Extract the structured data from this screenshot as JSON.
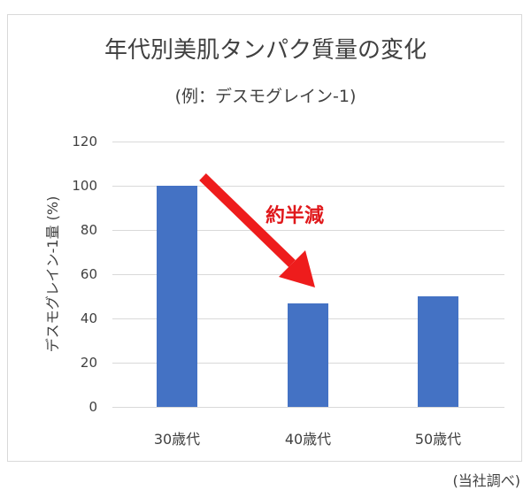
{
  "chart_data": {
    "type": "bar",
    "title": "年代別美肌タンパク質量の変化",
    "subtitle": "(例：デスモグレイン-1)",
    "xlabel": "",
    "ylabel": "デスモグレイン-1量 (%)",
    "categories": [
      "30歳代",
      "40歳代",
      "50歳代"
    ],
    "values": [
      100,
      47,
      50
    ],
    "ylim": [
      0,
      120
    ],
    "yticks": [
      0,
      20,
      40,
      60,
      80,
      100,
      120
    ],
    "grid": true,
    "legend": null,
    "bar_color": "#4472c4",
    "annotations": [
      {
        "text": "約半減",
        "color": "#e0181b",
        "type": "arrow",
        "from": "30歳代",
        "to": "40歳代"
      }
    ],
    "source_note": "(当社調べ)"
  },
  "yticks_labels": [
    "120",
    "100",
    "80",
    "60",
    "40",
    "20",
    "0"
  ]
}
